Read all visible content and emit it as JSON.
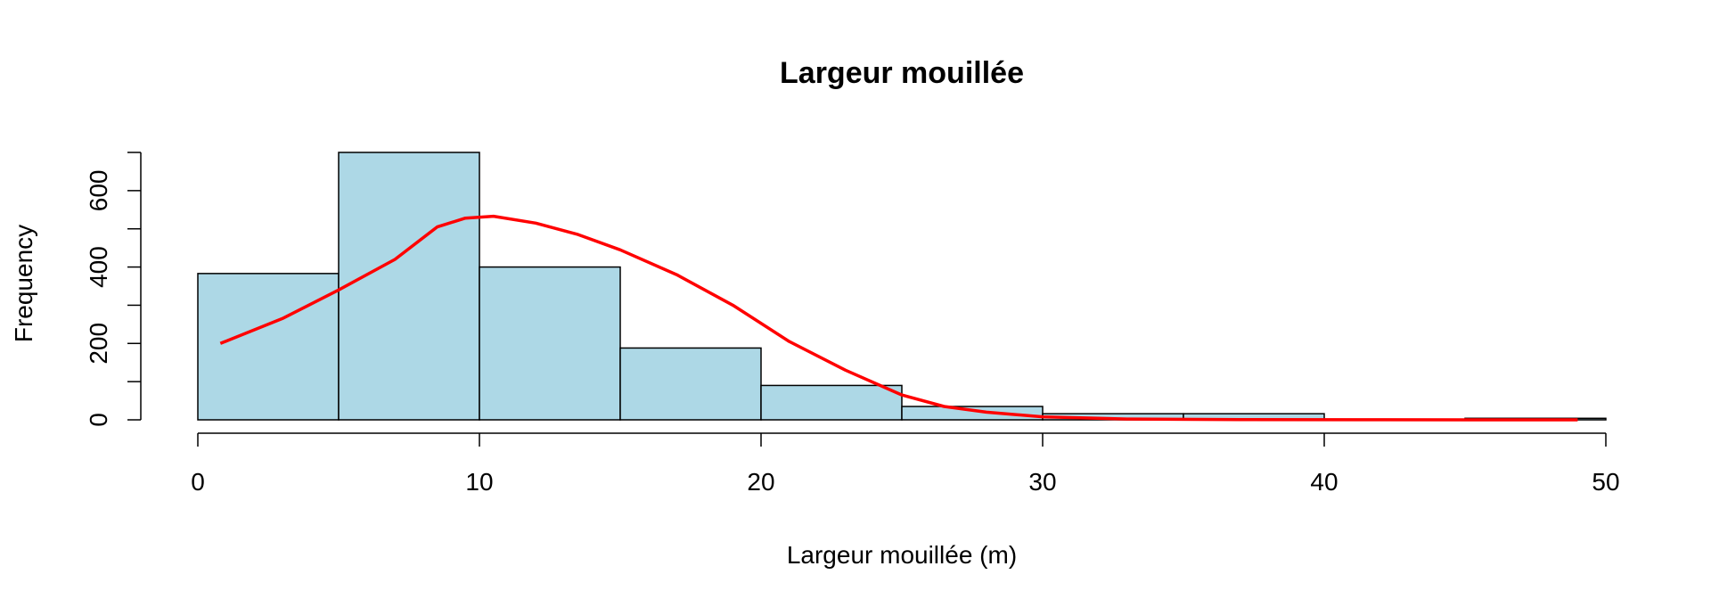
{
  "chart_data": {
    "type": "bar",
    "title": "Largeur mouillée",
    "xlabel": "Largeur mouillée (m)",
    "ylabel": "Frequency",
    "xlim": [
      0,
      50
    ],
    "ylim": [
      0,
      700
    ],
    "x_ticks": [
      0,
      10,
      20,
      30,
      40,
      50
    ],
    "y_ticks": [
      0,
      100,
      200,
      300,
      400,
      500,
      600,
      700
    ],
    "y_tick_labels": [
      "0",
      "200",
      "400",
      "600"
    ],
    "grid": false,
    "bins": [
      {
        "start": 0,
        "end": 5,
        "value": 383
      },
      {
        "start": 5,
        "end": 10,
        "value": 700
      },
      {
        "start": 10,
        "end": 15,
        "value": 400
      },
      {
        "start": 15,
        "end": 20,
        "value": 188
      },
      {
        "start": 20,
        "end": 25,
        "value": 90
      },
      {
        "start": 25,
        "end": 30,
        "value": 35
      },
      {
        "start": 30,
        "end": 35,
        "value": 16
      },
      {
        "start": 35,
        "end": 40,
        "value": 16
      },
      {
        "start": 40,
        "end": 45,
        "value": 0
      },
      {
        "start": 45,
        "end": 50,
        "value": 4
      }
    ],
    "bar_color": "#add8e6",
    "curve_color": "#ff0000",
    "curve": [
      [
        0.8,
        200
      ],
      [
        3.0,
        265
      ],
      [
        5.0,
        340
      ],
      [
        7.0,
        420
      ],
      [
        8.5,
        505
      ],
      [
        9.5,
        528
      ],
      [
        10.5,
        533
      ],
      [
        12.0,
        515
      ],
      [
        13.5,
        485
      ],
      [
        15.0,
        445
      ],
      [
        17.0,
        380
      ],
      [
        19.0,
        300
      ],
      [
        21.0,
        205
      ],
      [
        23.0,
        130
      ],
      [
        25.0,
        65
      ],
      [
        26.5,
        35
      ],
      [
        28.0,
        20
      ],
      [
        30.0,
        8
      ],
      [
        33.0,
        2
      ],
      [
        37.0,
        0.5
      ],
      [
        42.0,
        0.2
      ],
      [
        49.0,
        0
      ]
    ]
  }
}
